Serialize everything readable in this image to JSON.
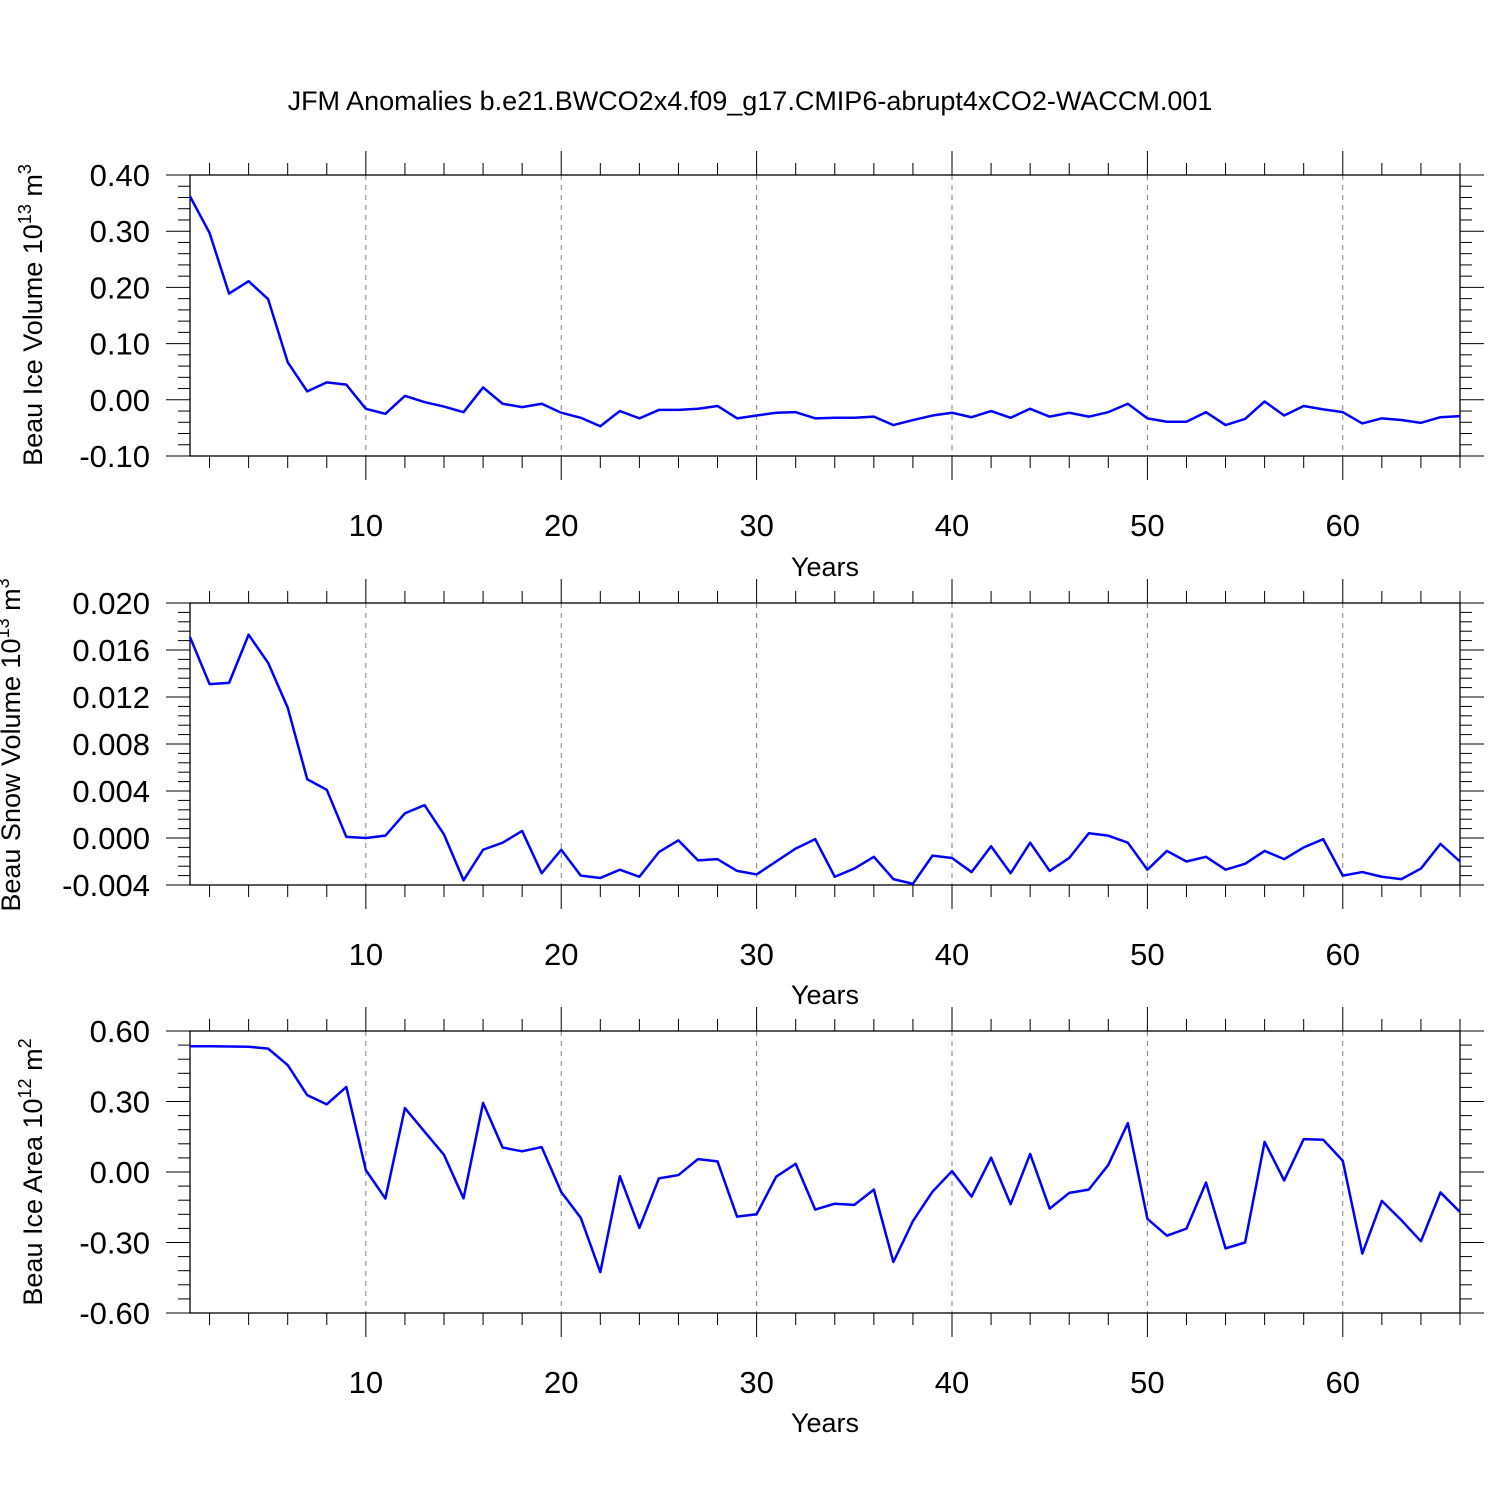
{
  "title": "JFM Anomalies b.e21.BWCO2x4.f09_g17.CMIP6-abrupt4xCO2-WACCM.001",
  "colors": {
    "line": "#0000ff",
    "axis": "#000000",
    "grid": "#808080"
  },
  "chart_data": [
    {
      "type": "line",
      "name": "ice-volume",
      "ylabel_main": "Beau Ice Volume 10",
      "ylabel_sup": "13",
      "ylabel_unit": " m",
      "ylabel_unit_sup": "3",
      "xlabel": "Years",
      "xlim": [
        1,
        66
      ],
      "ylim": [
        -0.1,
        0.4
      ],
      "xticks": [
        10,
        20,
        30,
        40,
        50,
        60
      ],
      "xtick_labels": [
        "10",
        "20",
        "30",
        "40",
        "50",
        "60"
      ],
      "yticks": [
        -0.1,
        0.0,
        0.1,
        0.2,
        0.3,
        0.4
      ],
      "ytick_labels": [
        "-0.10",
        "0.00",
        "0.10",
        "0.20",
        "0.30",
        "0.40"
      ],
      "grid": "vertical dashed at major x ticks",
      "series": [
        {
          "name": "Beau Ice Volume",
          "values": [
            0.362,
            0.297,
            0.189,
            0.211,
            0.179,
            0.067,
            0.015,
            0.031,
            0.027,
            -0.016,
            -0.025,
            0.007,
            -0.004,
            -0.012,
            -0.022,
            0.022,
            -0.007,
            -0.013,
            -0.007,
            -0.023,
            -0.032,
            -0.047,
            -0.02,
            -0.033,
            -0.018,
            -0.018,
            -0.016,
            -0.011,
            -0.033,
            -0.028,
            -0.023,
            -0.022,
            -0.033,
            -0.032,
            -0.032,
            -0.03,
            -0.045,
            -0.036,
            -0.028,
            -0.023,
            -0.031,
            -0.02,
            -0.032,
            -0.016,
            -0.03,
            -0.023,
            -0.03,
            -0.022,
            -0.007,
            -0.033,
            -0.039,
            -0.039,
            -0.022,
            -0.045,
            -0.034,
            -0.003,
            -0.028,
            -0.011,
            -0.017,
            -0.022,
            -0.042,
            -0.033,
            -0.036,
            -0.041,
            -0.031,
            -0.029
          ]
        }
      ]
    },
    {
      "type": "line",
      "name": "snow-volume",
      "ylabel_main": "Beau Snow Volume 10",
      "ylabel_sup": "13",
      "ylabel_unit": " m",
      "ylabel_unit_sup": "3",
      "xlabel": "Years",
      "xlim": [
        1,
        66
      ],
      "ylim": [
        -0.004,
        0.02
      ],
      "xticks": [
        10,
        20,
        30,
        40,
        50,
        60
      ],
      "xtick_labels": [
        "10",
        "20",
        "30",
        "40",
        "50",
        "60"
      ],
      "yticks": [
        -0.004,
        0.0,
        0.004,
        0.008,
        0.012,
        0.016,
        0.02
      ],
      "ytick_labels": [
        "-0.004",
        "0.000",
        "0.004",
        "0.008",
        "0.012",
        "0.016",
        "0.020"
      ],
      "grid": "vertical dashed at major x ticks",
      "series": [
        {
          "name": "Beau Snow Volume",
          "values": [
            0.0171,
            0.0131,
            0.0132,
            0.0173,
            0.0149,
            0.0111,
            0.005,
            0.0041,
            0.0001,
            0.0,
            0.0002,
            0.0021,
            0.0028,
            0.0003,
            -0.0036,
            -0.001,
            -0.0004,
            0.0006,
            -0.003,
            -0.001,
            -0.0032,
            -0.0034,
            -0.0027,
            -0.0033,
            -0.0012,
            -0.0002,
            -0.0019,
            -0.0018,
            -0.0028,
            -0.0031,
            -0.002,
            -0.0009,
            -0.0001,
            -0.0033,
            -0.0026,
            -0.0016,
            -0.0035,
            -0.0039,
            -0.0015,
            -0.0017,
            -0.0029,
            -0.0007,
            -0.003,
            -0.0004,
            -0.0028,
            -0.0017,
            0.0004,
            0.0002,
            -0.0004,
            -0.0027,
            -0.0011,
            -0.002,
            -0.0016,
            -0.0027,
            -0.0022,
            -0.0011,
            -0.0018,
            -0.0008,
            -0.0001,
            -0.0032,
            -0.0029,
            -0.0033,
            -0.0035,
            -0.0026,
            -0.0005,
            -0.002
          ]
        }
      ]
    },
    {
      "type": "line",
      "name": "ice-area",
      "ylabel_main": "Beau Ice Area 10",
      "ylabel_sup": "12",
      "ylabel_unit": " m",
      "ylabel_unit_sup": "2",
      "xlabel": "Years",
      "xlim": [
        1,
        66
      ],
      "ylim": [
        -0.6,
        0.6
      ],
      "xticks": [
        10,
        20,
        30,
        40,
        50,
        60
      ],
      "xtick_labels": [
        "10",
        "20",
        "30",
        "40",
        "50",
        "60"
      ],
      "yticks": [
        -0.6,
        -0.3,
        0.0,
        0.3,
        0.6
      ],
      "ytick_labels": [
        "-0.60",
        "-0.30",
        "0.00",
        "0.30",
        "0.60"
      ],
      "grid": "vertical dashed at major x ticks",
      "series": [
        {
          "name": "Beau Ice Area",
          "values": [
            0.535,
            0.535,
            0.534,
            0.533,
            0.525,
            0.455,
            0.327,
            0.288,
            0.362,
            0.008,
            -0.113,
            0.272,
            0.172,
            0.073,
            -0.112,
            0.294,
            0.104,
            0.088,
            0.106,
            -0.085,
            -0.195,
            -0.426,
            -0.018,
            -0.238,
            -0.027,
            -0.013,
            0.055,
            0.045,
            -0.19,
            -0.18,
            -0.02,
            0.035,
            -0.16,
            -0.135,
            -0.14,
            -0.075,
            -0.383,
            -0.209,
            -0.084,
            0.004,
            -0.105,
            0.061,
            -0.137,
            0.077,
            -0.156,
            -0.089,
            -0.075,
            0.03,
            0.208,
            -0.199,
            -0.271,
            -0.241,
            -0.045,
            -0.325,
            -0.3,
            0.128,
            -0.036,
            0.14,
            0.137,
            0.048,
            -0.347,
            -0.123,
            -0.205,
            -0.295,
            -0.087,
            -0.17
          ]
        }
      ]
    }
  ]
}
